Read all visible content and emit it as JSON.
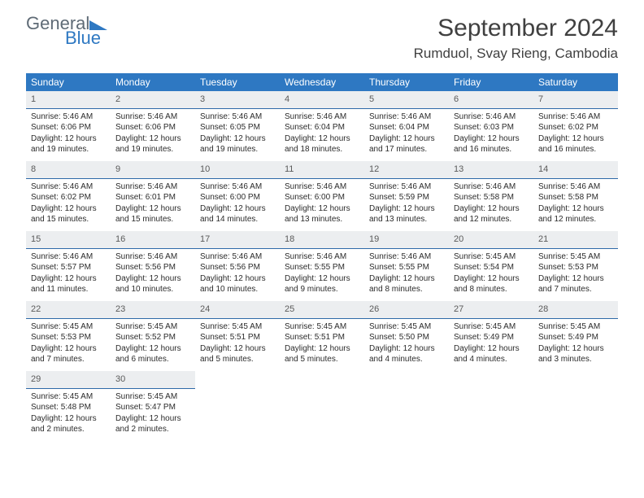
{
  "logo": {
    "word1": "General",
    "word2": "Blue"
  },
  "title": "September 2024",
  "location": "Rumduol, Svay Rieng, Cambodia",
  "header_bg": "#2e78c2",
  "header_fg": "#ffffff",
  "daynum_bg": "#eceef0",
  "rule_color": "#2e6aa8",
  "weekdays": [
    "Sunday",
    "Monday",
    "Tuesday",
    "Wednesday",
    "Thursday",
    "Friday",
    "Saturday"
  ],
  "weeks": [
    [
      {
        "n": "1",
        "sr": "5:46 AM",
        "ss": "6:06 PM",
        "dl": "12 hours and 19 minutes."
      },
      {
        "n": "2",
        "sr": "5:46 AM",
        "ss": "6:06 PM",
        "dl": "12 hours and 19 minutes."
      },
      {
        "n": "3",
        "sr": "5:46 AM",
        "ss": "6:05 PM",
        "dl": "12 hours and 19 minutes."
      },
      {
        "n": "4",
        "sr": "5:46 AM",
        "ss": "6:04 PM",
        "dl": "12 hours and 18 minutes."
      },
      {
        "n": "5",
        "sr": "5:46 AM",
        "ss": "6:04 PM",
        "dl": "12 hours and 17 minutes."
      },
      {
        "n": "6",
        "sr": "5:46 AM",
        "ss": "6:03 PM",
        "dl": "12 hours and 16 minutes."
      },
      {
        "n": "7",
        "sr": "5:46 AM",
        "ss": "6:02 PM",
        "dl": "12 hours and 16 minutes."
      }
    ],
    [
      {
        "n": "8",
        "sr": "5:46 AM",
        "ss": "6:02 PM",
        "dl": "12 hours and 15 minutes."
      },
      {
        "n": "9",
        "sr": "5:46 AM",
        "ss": "6:01 PM",
        "dl": "12 hours and 15 minutes."
      },
      {
        "n": "10",
        "sr": "5:46 AM",
        "ss": "6:00 PM",
        "dl": "12 hours and 14 minutes."
      },
      {
        "n": "11",
        "sr": "5:46 AM",
        "ss": "6:00 PM",
        "dl": "12 hours and 13 minutes."
      },
      {
        "n": "12",
        "sr": "5:46 AM",
        "ss": "5:59 PM",
        "dl": "12 hours and 13 minutes."
      },
      {
        "n": "13",
        "sr": "5:46 AM",
        "ss": "5:58 PM",
        "dl": "12 hours and 12 minutes."
      },
      {
        "n": "14",
        "sr": "5:46 AM",
        "ss": "5:58 PM",
        "dl": "12 hours and 12 minutes."
      }
    ],
    [
      {
        "n": "15",
        "sr": "5:46 AM",
        "ss": "5:57 PM",
        "dl": "12 hours and 11 minutes."
      },
      {
        "n": "16",
        "sr": "5:46 AM",
        "ss": "5:56 PM",
        "dl": "12 hours and 10 minutes."
      },
      {
        "n": "17",
        "sr": "5:46 AM",
        "ss": "5:56 PM",
        "dl": "12 hours and 10 minutes."
      },
      {
        "n": "18",
        "sr": "5:46 AM",
        "ss": "5:55 PM",
        "dl": "12 hours and 9 minutes."
      },
      {
        "n": "19",
        "sr": "5:46 AM",
        "ss": "5:55 PM",
        "dl": "12 hours and 8 minutes."
      },
      {
        "n": "20",
        "sr": "5:45 AM",
        "ss": "5:54 PM",
        "dl": "12 hours and 8 minutes."
      },
      {
        "n": "21",
        "sr": "5:45 AM",
        "ss": "5:53 PM",
        "dl": "12 hours and 7 minutes."
      }
    ],
    [
      {
        "n": "22",
        "sr": "5:45 AM",
        "ss": "5:53 PM",
        "dl": "12 hours and 7 minutes."
      },
      {
        "n": "23",
        "sr": "5:45 AM",
        "ss": "5:52 PM",
        "dl": "12 hours and 6 minutes."
      },
      {
        "n": "24",
        "sr": "5:45 AM",
        "ss": "5:51 PM",
        "dl": "12 hours and 5 minutes."
      },
      {
        "n": "25",
        "sr": "5:45 AM",
        "ss": "5:51 PM",
        "dl": "12 hours and 5 minutes."
      },
      {
        "n": "26",
        "sr": "5:45 AM",
        "ss": "5:50 PM",
        "dl": "12 hours and 4 minutes."
      },
      {
        "n": "27",
        "sr": "5:45 AM",
        "ss": "5:49 PM",
        "dl": "12 hours and 4 minutes."
      },
      {
        "n": "28",
        "sr": "5:45 AM",
        "ss": "5:49 PM",
        "dl": "12 hours and 3 minutes."
      }
    ],
    [
      {
        "n": "29",
        "sr": "5:45 AM",
        "ss": "5:48 PM",
        "dl": "12 hours and 2 minutes."
      },
      {
        "n": "30",
        "sr": "5:45 AM",
        "ss": "5:47 PM",
        "dl": "12 hours and 2 minutes."
      },
      null,
      null,
      null,
      null,
      null
    ]
  ],
  "labels": {
    "sunrise": "Sunrise:",
    "sunset": "Sunset:",
    "daylight": "Daylight:"
  }
}
